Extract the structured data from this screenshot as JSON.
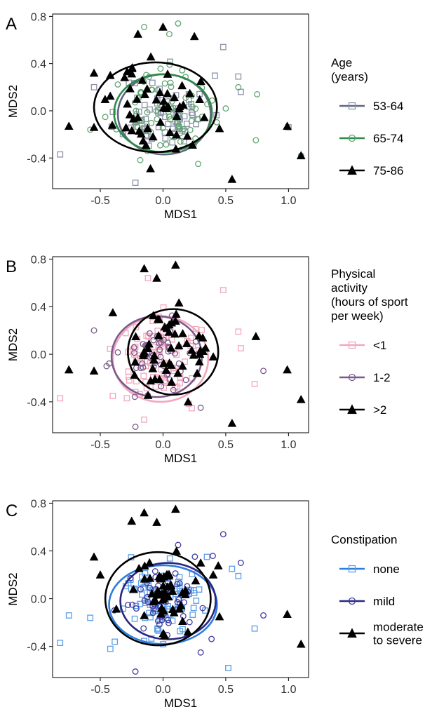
{
  "chart_data": [
    {
      "type": "scatter",
      "panel_label": "A",
      "xlabel": "MDS1",
      "ylabel": "MDS2",
      "xlim": [
        -0.88,
        1.16
      ],
      "ylim": [
        -0.66,
        0.82
      ],
      "xticks": [
        -0.5,
        0.0,
        0.5,
        1.0
      ],
      "xtick_labels": [
        "-0.5",
        "0.0",
        "0.5",
        "1.0"
      ],
      "yticks": [
        -0.4,
        0.0,
        0.4,
        0.8
      ],
      "ytick_labels": [
        "-0.4",
        "0.0",
        "0.4",
        "0.8"
      ],
      "legend": {
        "title_lines": [
          "Age",
          "(years)"
        ],
        "placement": "right"
      },
      "series": [
        {
          "name": "53-64",
          "color": "#8c93a8",
          "line_color": "#5e6780",
          "marker": "square",
          "seed": 11,
          "n": 70,
          "center": [
            0.02,
            -0.02
          ],
          "spread": [
            0.17,
            0.16
          ],
          "extra_points": [
            [
              -0.82,
              -0.37
            ],
            [
              0.48,
              0.54
            ],
            [
              0.6,
              0.29
            ],
            [
              0.62,
              0.16
            ],
            [
              1.0,
              -0.14
            ],
            [
              -0.22,
              -0.61
            ],
            [
              -0.55,
              0.2
            ]
          ],
          "ellipse": {
            "cx": 0.01,
            "cy": -0.03,
            "rx": 0.37,
            "ry": 0.34
          }
        },
        {
          "name": "65-74",
          "color": "#5fa56f",
          "line_color": "#2e8b4a",
          "marker": "circle",
          "seed": 23,
          "n": 75,
          "center": [
            0.0,
            -0.01
          ],
          "spread": [
            0.17,
            0.16
          ],
          "extra_points": [
            [
              -0.58,
              -0.16
            ],
            [
              -0.15,
              0.71
            ],
            [
              0.12,
              0.74
            ],
            [
              0.05,
              0.65
            ],
            [
              0.5,
              0.02
            ],
            [
              0.6,
              0.2
            ],
            [
              0.75,
              0.14
            ],
            [
              0.74,
              -0.25
            ],
            [
              1.1,
              -0.38
            ],
            [
              0.28,
              -0.45
            ]
          ],
          "ellipse": {
            "cx": 0.0,
            "cy": -0.02,
            "rx": 0.39,
            "ry": 0.33
          }
        },
        {
          "name": "75-86",
          "color": "#000000",
          "line_color": "#000000",
          "marker": "triangle",
          "seed": 37,
          "n": 50,
          "center": [
            -0.06,
            0.02
          ],
          "spread": [
            0.17,
            0.18
          ],
          "extra_points": [
            [
              -0.75,
              -0.13
            ],
            [
              -0.55,
              -0.14
            ],
            [
              -0.1,
              -0.49
            ],
            [
              -0.2,
              0.65
            ],
            [
              -0.42,
              0.3
            ],
            [
              0.0,
              0.71
            ],
            [
              0.25,
              0.63
            ],
            [
              0.55,
              -0.58
            ],
            [
              0.99,
              -0.13
            ],
            [
              1.1,
              -0.38
            ],
            [
              0.45,
              -0.15
            ],
            [
              -0.55,
              0.32
            ]
          ],
          "ellipse": {
            "cx": -0.06,
            "cy": 0.03,
            "rx": 0.49,
            "ry": 0.38
          }
        }
      ]
    },
    {
      "type": "scatter",
      "panel_label": "B",
      "xlabel": "MDS1",
      "ylabel": "MDS2",
      "xlim": [
        -0.88,
        1.16
      ],
      "ylim": [
        -0.66,
        0.82
      ],
      "xticks": [
        -0.5,
        0.0,
        0.5,
        1.0
      ],
      "xtick_labels": [
        "-0.5",
        "0.0",
        "0.5",
        "1.0"
      ],
      "yticks": [
        -0.4,
        0.0,
        0.4,
        0.8
      ],
      "ytick_labels": [
        "-0.4",
        "0.0",
        "0.4",
        "0.8"
      ],
      "legend": {
        "title_lines": [
          "Physical",
          "activity",
          "(hours of sport",
          "per week)"
        ],
        "placement": "right"
      },
      "series": [
        {
          "name": "<1",
          "color": "#f2a7bd",
          "line_color": "#f2a7bd",
          "marker": "square",
          "seed": 41,
          "n": 90,
          "center": [
            0.0,
            -0.02
          ],
          "spread": [
            0.18,
            0.17
          ],
          "extra_points": [
            [
              -0.82,
              -0.37
            ],
            [
              -0.12,
              0.64
            ],
            [
              0.48,
              0.54
            ],
            [
              0.6,
              0.19
            ],
            [
              0.62,
              0.05
            ],
            [
              0.73,
              -0.25
            ],
            [
              -0.4,
              -0.35
            ],
            [
              -0.15,
              -0.55
            ]
          ],
          "ellipse": {
            "cx": -0.02,
            "cy": -0.04,
            "rx": 0.38,
            "ry": 0.36
          }
        },
        {
          "name": "1-2",
          "color": "#7b5a8c",
          "line_color": "#7b5a8c",
          "marker": "circle",
          "seed": 53,
          "n": 55,
          "center": [
            -0.03,
            0.0
          ],
          "spread": [
            0.15,
            0.15
          ],
          "extra_points": [
            [
              -0.55,
              0.2
            ],
            [
              -0.22,
              -0.61
            ],
            [
              0.8,
              -0.14
            ],
            [
              0.3,
              -0.45
            ],
            [
              -0.45,
              -0.1
            ]
          ],
          "ellipse": {
            "cx": -0.05,
            "cy": -0.02,
            "rx": 0.36,
            "ry": 0.34
          }
        },
        {
          "name": ">2",
          "color": "#000000",
          "line_color": "#000000",
          "marker": "triangle",
          "seed": 67,
          "n": 50,
          "center": [
            0.05,
            0.0
          ],
          "spread": [
            0.16,
            0.17
          ],
          "extra_points": [
            [
              -0.75,
              -0.13
            ],
            [
              -0.55,
              -0.14
            ],
            [
              -0.15,
              0.72
            ],
            [
              -0.05,
              0.64
            ],
            [
              0.1,
              0.75
            ],
            [
              -0.4,
              0.35
            ],
            [
              0.55,
              -0.58
            ],
            [
              0.74,
              0.15
            ],
            [
              0.99,
              -0.13
            ],
            [
              1.1,
              -0.38
            ],
            [
              0.2,
              -0.4
            ]
          ],
          "ellipse": {
            "cx": 0.08,
            "cy": 0.02,
            "rx": 0.36,
            "ry": 0.36
          }
        }
      ]
    },
    {
      "type": "scatter",
      "panel_label": "C",
      "xlabel": "MDS1",
      "ylabel": "MDS2",
      "xlim": [
        -0.88,
        1.16
      ],
      "ylim": [
        -0.66,
        0.82
      ],
      "xticks": [
        -0.5,
        0.0,
        0.5,
        1.0
      ],
      "xtick_labels": [
        "-0.5",
        "0.0",
        "0.5",
        "1.0"
      ],
      "yticks": [
        -0.4,
        0.0,
        0.4,
        0.8
      ],
      "ytick_labels": [
        "-0.4",
        "0.0",
        "0.4",
        "0.8"
      ],
      "legend": {
        "title_lines": [
          "Constipation"
        ],
        "placement": "right"
      },
      "series": [
        {
          "name": "none",
          "color": "#5a9ee8",
          "line_color": "#2b7de0",
          "marker": "square",
          "seed": 71,
          "n": 90,
          "center": [
            0.0,
            -0.03
          ],
          "spread": [
            0.18,
            0.16
          ],
          "extra_points": [
            [
              -0.82,
              -0.37
            ],
            [
              -0.75,
              -0.14
            ],
            [
              -0.58,
              -0.16
            ],
            [
              0.52,
              -0.58
            ],
            [
              0.55,
              0.25
            ],
            [
              0.6,
              0.19
            ],
            [
              0.73,
              -0.25
            ],
            [
              -0.42,
              -0.42
            ],
            [
              0.35,
              0.35
            ]
          ],
          "ellipse": {
            "cx": 0.0,
            "cy": -0.05,
            "rx": 0.43,
            "ry": 0.33
          }
        },
        {
          "name": "mild",
          "color": "#3f3aa0",
          "line_color": "#2a2680",
          "marker": "circle",
          "seed": 83,
          "n": 55,
          "center": [
            0.03,
            -0.02
          ],
          "spread": [
            0.15,
            0.15
          ],
          "extra_points": [
            [
              0.48,
              0.54
            ],
            [
              0.62,
              0.3
            ],
            [
              0.8,
              -0.14
            ],
            [
              -0.22,
              -0.61
            ],
            [
              0.12,
              0.45
            ],
            [
              0.3,
              -0.45
            ]
          ],
          "ellipse": {
            "cx": 0.04,
            "cy": -0.02,
            "rx": 0.38,
            "ry": 0.32
          }
        },
        {
          "name": "moderate to severe",
          "label_lines": [
            "moderate",
            "to severe"
          ],
          "color": "#000000",
          "line_color": "#000000",
          "marker": "triangle",
          "seed": 97,
          "n": 50,
          "center": [
            -0.05,
            0.05
          ],
          "spread": [
            0.16,
            0.17
          ],
          "extra_points": [
            [
              -0.55,
              0.35
            ],
            [
              -0.25,
              0.65
            ],
            [
              -0.15,
              0.72
            ],
            [
              -0.05,
              0.64
            ],
            [
              0.1,
              0.75
            ],
            [
              -0.5,
              0.2
            ],
            [
              0.4,
              0.2
            ],
            [
              0.99,
              -0.13
            ],
            [
              1.1,
              -0.38
            ],
            [
              0.45,
              -0.15
            ],
            [
              0.3,
              0.3
            ]
          ],
          "ellipse": {
            "cx": -0.04,
            "cy": 0.0,
            "rx": 0.42,
            "ry": 0.39
          }
        }
      ]
    }
  ]
}
